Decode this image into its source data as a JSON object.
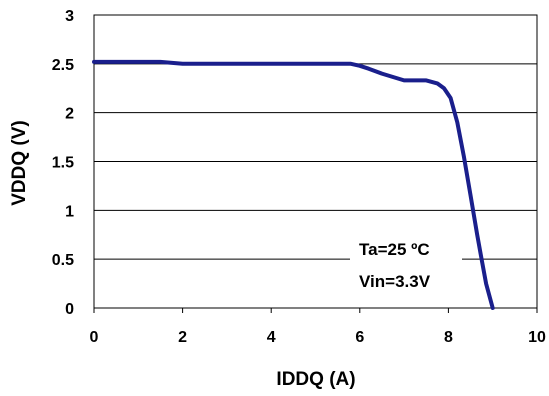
{
  "chart_data": {
    "type": "line",
    "title": "",
    "xlabel": "IDDQ (A)",
    "ylabel": "VDDQ (V)",
    "xlim": [
      0,
      10
    ],
    "ylim": [
      0,
      3
    ],
    "xticks": [
      "0",
      "2",
      "4",
      "6",
      "8",
      "10"
    ],
    "yticks": [
      "0",
      "0.5",
      "1",
      "1.5",
      "2",
      "2.5",
      "3"
    ],
    "grid": "horizontal",
    "legend": "none",
    "annotations": [
      "Ta=25 ºC",
      "Vin=3.3V"
    ],
    "series": [
      {
        "color": "#1a1f8c",
        "x": [
          0,
          1.5,
          2,
          3,
          4,
          5,
          5.8,
          6.0,
          6.2,
          6.5,
          7.0,
          7.5,
          7.75,
          7.9,
          8.05,
          8.2,
          8.35,
          8.5,
          8.65,
          8.75,
          8.85,
          9.0
        ],
        "y": [
          2.52,
          2.52,
          2.5,
          2.5,
          2.5,
          2.5,
          2.5,
          2.48,
          2.45,
          2.4,
          2.33,
          2.33,
          2.3,
          2.25,
          2.15,
          1.9,
          1.55,
          1.15,
          0.75,
          0.5,
          0.25,
          0.0
        ]
      }
    ]
  }
}
